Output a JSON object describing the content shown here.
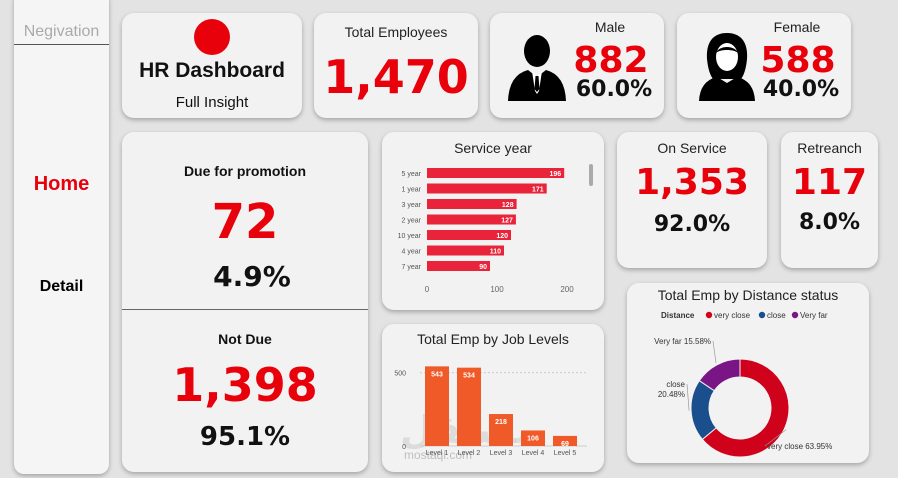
{
  "sidebar": {
    "title": "Negivation",
    "items": [
      {
        "label": "Home",
        "color": "#e8000b"
      },
      {
        "label": "Detail",
        "color": "#000000"
      }
    ]
  },
  "header": {
    "title": "HR Dashboard",
    "subtitle": "Full Insight",
    "dot_color": "#e8000b"
  },
  "kpis": {
    "total_employees": {
      "label": "Total Employees",
      "value": "1,470"
    },
    "male": {
      "label": "Male",
      "value": "882",
      "percent": "60.0%"
    },
    "female": {
      "label": "Female",
      "value": "588",
      "percent": "40.0%"
    },
    "due_promotion": {
      "label": "Due for promotion",
      "value": "72",
      "percent": "4.9%"
    },
    "not_due": {
      "label": "Not Due",
      "value": "1,398",
      "percent": "95.1%"
    },
    "on_service": {
      "label": "On Service",
      "value": "1,353",
      "percent": "92.0%"
    },
    "retrench": {
      "label": "Retreanch",
      "value": "117",
      "percent": "8.0%"
    }
  },
  "watermark": {
    "text": "mostaql.com"
  },
  "chart_data": [
    {
      "id": "service_year",
      "type": "bar",
      "orientation": "horizontal",
      "title": "Service year",
      "categories": [
        "5 year",
        "1 year",
        "3 year",
        "2 year",
        "10 year",
        "4 year",
        "7 year"
      ],
      "values": [
        196,
        171,
        128,
        127,
        120,
        110,
        90
      ],
      "xlim": [
        0,
        200
      ],
      "xticks": [
        "0",
        "100",
        "200"
      ],
      "color": "#e8233a"
    },
    {
      "id": "job_levels",
      "type": "bar",
      "title": "Total Emp by Job Levels",
      "categories": [
        "Level 1",
        "Level 2",
        "Level 3",
        "Level 4",
        "Level 5"
      ],
      "values": [
        543,
        534,
        218,
        106,
        69
      ],
      "ylim": [
        0,
        600
      ],
      "yticks": [
        "0",
        "500"
      ],
      "color": "#f05a28"
    },
    {
      "id": "distance",
      "type": "pie",
      "donut": true,
      "title": "Total Emp by Distance status",
      "legend_title": "Distance",
      "legend_position": "top",
      "series": [
        {
          "name": "very close",
          "value": 63.95,
          "label": "very close 63.95%",
          "color": "#d0021b"
        },
        {
          "name": "close",
          "value": 20.48,
          "label": "close 20.48%",
          "color": "#1b4e8c"
        },
        {
          "name": "Very far",
          "value": 15.58,
          "label": "Very far 15.58%",
          "color": "#7a1586"
        }
      ]
    }
  ]
}
